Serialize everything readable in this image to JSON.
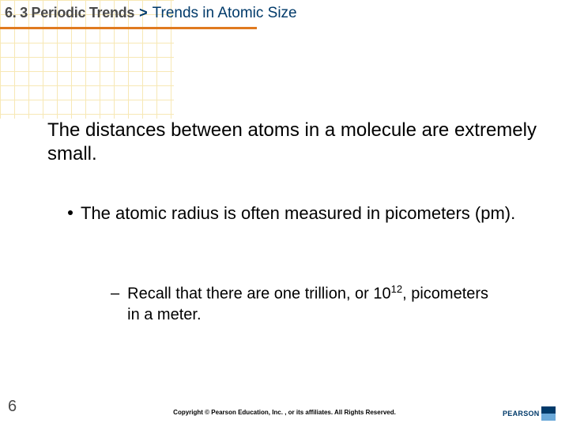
{
  "header": {
    "section_label": "6. 3 Periodic Trends",
    "chevron": ">",
    "section_title": "Trends in Atomic Size",
    "underline_color": "#e07a1f"
  },
  "body": {
    "paragraph": "The distances between atoms in a molecule are extremely small."
  },
  "bullet_level1": {
    "text": "The atomic radius is often measured in picometers (pm)."
  },
  "bullet_level2": {
    "prefix": "Recall that there are one trillion, or 10",
    "exponent": "12",
    "suffix": ", picometers in a meter."
  },
  "page_number": "6",
  "copyright": "Copyright © Pearson Education, Inc. , or its affiliates. All Rights Reserved.",
  "logo": {
    "text": "PEARSON"
  },
  "colors": {
    "grid": "#f2d77a",
    "text_header": "#4a4a4a",
    "title": "#003a6a",
    "body": "#000000",
    "background": "#ffffff"
  }
}
